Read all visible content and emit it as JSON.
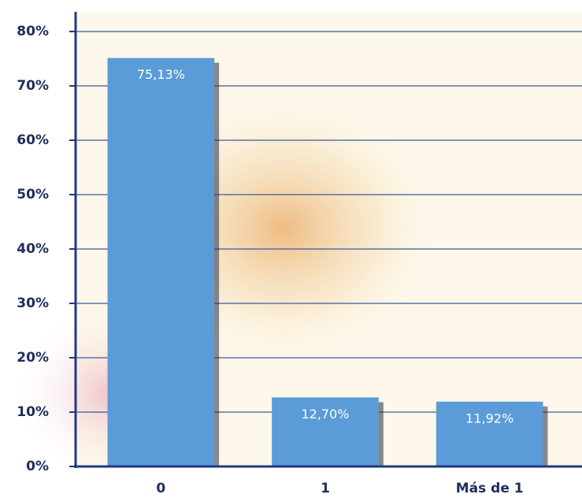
{
  "chart_data": {
    "type": "bar",
    "categories": [
      "0",
      "1",
      "Más de 1"
    ],
    "values": [
      75.13,
      12.7,
      11.92
    ],
    "value_labels": [
      "75,13%",
      "12,70%",
      "11,92%"
    ],
    "color": "#5b9bd8",
    "ylim": [
      0,
      80
    ],
    "yticks": [
      {
        "value": 0,
        "label": "0%"
      },
      {
        "value": 10,
        "label": "10%"
      },
      {
        "value": 20,
        "label": "20%"
      },
      {
        "value": 30,
        "label": "30%"
      },
      {
        "value": 40,
        "label": "40%"
      },
      {
        "value": 50,
        "label": "50%"
      },
      {
        "value": 60,
        "label": "60%"
      },
      {
        "value": 70,
        "label": "70%"
      },
      {
        "value": 80,
        "label": "80%"
      }
    ],
    "grid": true
  }
}
